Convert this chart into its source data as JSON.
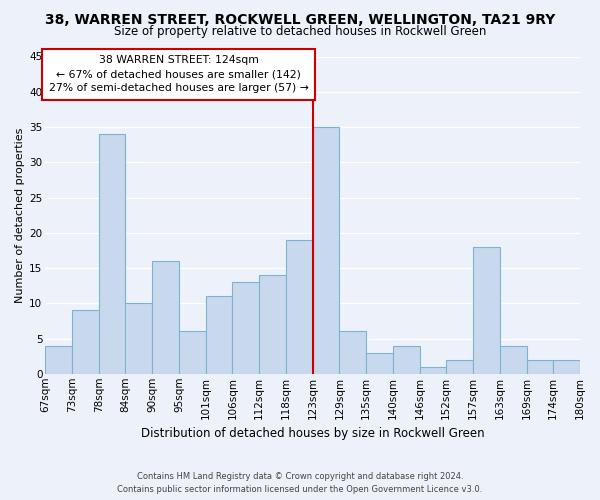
{
  "title": "38, WARREN STREET, ROCKWELL GREEN, WELLINGTON, TA21 9RY",
  "subtitle": "Size of property relative to detached houses in Rockwell Green",
  "xlabel": "Distribution of detached houses by size in Rockwell Green",
  "ylabel": "Number of detached properties",
  "footer_line1": "Contains HM Land Registry data © Crown copyright and database right 2024.",
  "footer_line2": "Contains public sector information licensed under the Open Government Licence v3.0.",
  "bin_labels": [
    "67sqm",
    "73sqm",
    "78sqm",
    "84sqm",
    "90sqm",
    "95sqm",
    "101sqm",
    "106sqm",
    "112sqm",
    "118sqm",
    "123sqm",
    "129sqm",
    "135sqm",
    "140sqm",
    "146sqm",
    "152sqm",
    "157sqm",
    "163sqm",
    "169sqm",
    "174sqm",
    "180sqm"
  ],
  "bar_heights": [
    4,
    9,
    34,
    10,
    16,
    6,
    11,
    13,
    14,
    19,
    35,
    6,
    3,
    4,
    1,
    2,
    18,
    4,
    2,
    2
  ],
  "bar_color": "#c8d9ed",
  "bar_edge_color": "#7ab3d4",
  "highlight_color": "#cc0000",
  "ylim": [
    0,
    45
  ],
  "yticks": [
    0,
    5,
    10,
    15,
    20,
    25,
    30,
    35,
    40,
    45
  ],
  "annotation_title": "38 WARREN STREET: 124sqm",
  "annotation_line1": "← 67% of detached houses are smaller (142)",
  "annotation_line2": "27% of semi-detached houses are larger (57) →",
  "annotation_box_color": "#ffffff",
  "annotation_box_edge": "#cc0000",
  "background_color": "#edf2fa",
  "plot_background": "#edf2fa",
  "grid_color": "#ffffff",
  "title_fontsize": 10,
  "subtitle_fontsize": 8.5,
  "axis_label_fontsize": 8,
  "tick_fontsize": 7.5
}
